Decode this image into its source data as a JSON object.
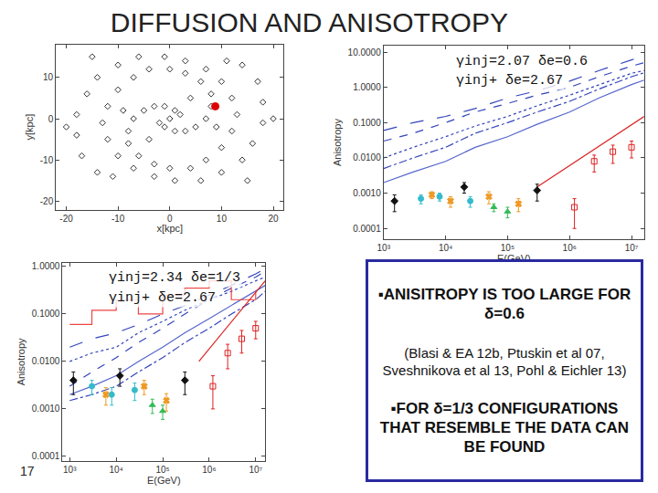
{
  "slide": {
    "title": "DIFFUSION AND ANISOTROPY",
    "page": "17",
    "box": {
      "points": [
        "▪ANISITROPY IS TOO LARGE FOR δ=0.6",
        "▪FOR δ=1/3 CONFIGURATIONS THAT RESEMBLE THE DATA CAN BE FOUND"
      ],
      "note": "(Blasi & EA 12b, Ptuskin et al 07, Sveshnikova et al 13, Pohl & Eichler 13)"
    }
  },
  "chart_data": [
    {
      "type": "scatter",
      "x_label": "x[kpc]",
      "y_label": "y[kpc]",
      "xlim": [
        -22,
        22
      ],
      "xticks": [
        -20,
        -10,
        0,
        10,
        20
      ],
      "ylim": [
        -22,
        18
      ],
      "yticks": [
        -20,
        -10,
        0,
        10
      ],
      "grid": false,
      "series": [
        {
          "type": "scatter",
          "marker": "diamond-open",
          "color": "#333333",
          "x": [
            1,
            -1,
            -3,
            -5,
            -7,
            -8,
            -8,
            -6,
            -3,
            0,
            4,
            7,
            10,
            12,
            13,
            12,
            10,
            7,
            3,
            -1,
            -6,
            -10,
            -14,
            -16,
            -18,
            -18,
            -17,
            -14,
            -1,
            1,
            3,
            5,
            7,
            8,
            8,
            6,
            3,
            0,
            -4,
            -7,
            -10,
            -12,
            -13,
            -12,
            -10,
            -7,
            -3,
            1,
            6,
            10,
            14,
            16,
            18,
            18,
            17,
            14,
            0,
            2,
            -2,
            4,
            -4,
            9,
            -9,
            15,
            -15,
            20,
            -20,
            11,
            -11
          ],
          "values": [
            2,
            3,
            3,
            2,
            0,
            -3,
            -6,
            -9,
            -11,
            -12,
            -12,
            -10,
            -7,
            -3,
            1,
            5,
            9,
            12,
            14,
            15,
            15,
            13,
            10,
            6,
            1,
            -4,
            -9,
            -13,
            -2,
            -3,
            -3,
            -2,
            0,
            3,
            6,
            9,
            11,
            12,
            12,
            10,
            7,
            3,
            -1,
            -5,
            -9,
            -12,
            -14,
            -15,
            -15,
            -13,
            -10,
            -6,
            -1,
            4,
            9,
            13,
            0,
            1,
            -1,
            5,
            -5,
            -2,
            2,
            -15,
            15,
            0,
            -2,
            14,
            -14
          ]
        },
        {
          "type": "scatter",
          "marker": "circle",
          "color": "#dd0000",
          "x": [
            8.8
          ],
          "values": [
            3
          ]
        }
      ]
    },
    {
      "type": "line",
      "log": true,
      "x_label": "E(GeV)",
      "y_label": "Anisotropy",
      "grid": false,
      "annotations": [
        "γinj=2.07 δe=0.6",
        "γinj+ δe=2.67"
      ],
      "xlim": [
        1000,
        16000000
      ],
      "xticks": [
        {
          "value": 1000,
          "label": "10³"
        },
        {
          "value": 10000,
          "label": "10⁴"
        },
        {
          "value": 100000,
          "label": "10⁵"
        },
        {
          "value": 1000000,
          "label": "10⁶"
        },
        {
          "value": 10000000,
          "label": "10⁷"
        }
      ],
      "ylim": [
        5e-05,
        15
      ],
      "yticks": [
        0.0001,
        {
          "value": 0.001,
          "label": "0.0010"
        },
        {
          "value": 0.01,
          "label": "0.0100"
        },
        {
          "value": 0.1,
          "label": "0.1000"
        },
        {
          "value": 1,
          "label": "1.0000"
        },
        {
          "value": 10,
          "label": "10.0000"
        }
      ],
      "series": [
        {
          "type": "line",
          "line_style": "dash",
          "color": "#3344bb",
          "x": [
            1000,
            3000,
            10000,
            30000,
            100000,
            300000,
            1000000,
            3000000,
            10000000,
            16000000
          ],
          "values": [
            0.03,
            0.05,
            0.1,
            0.2,
            0.35,
            0.6,
            1.0,
            2,
            4,
            5
          ]
        },
        {
          "type": "line",
          "line_style": "dot",
          "color": "#3344bb",
          "x": [
            1000,
            3000,
            10000,
            30000,
            100000,
            300000,
            1000000,
            3000000,
            10000000,
            16000000
          ],
          "values": [
            0.01,
            0.02,
            0.04,
            0.08,
            0.15,
            0.3,
            0.6,
            1.2,
            2.5,
            3
          ]
        },
        {
          "type": "line",
          "line_style": "dashdot",
          "color": "#3344bb",
          "x": [
            1000,
            3000,
            10000,
            30000,
            100000,
            300000,
            1000000,
            3000000,
            10000000,
            16000000
          ],
          "values": [
            0.005,
            0.01,
            0.02,
            0.05,
            0.1,
            0.2,
            0.4,
            0.9,
            2,
            2.6
          ]
        },
        {
          "type": "line",
          "line_style": "solid",
          "color": "#5566cc",
          "x": [
            1000,
            3000,
            10000,
            30000,
            100000,
            300000,
            1000000,
            3000000,
            10000000,
            16000000
          ],
          "values": [
            0.002,
            0.004,
            0.008,
            0.02,
            0.04,
            0.09,
            0.2,
            0.5,
            1.2,
            1.6
          ]
        },
        {
          "type": "line",
          "line_style": "longdash",
          "color": "#3344bb",
          "x": [
            1000,
            3000,
            10000,
            30000,
            100000,
            300000,
            1000000,
            3000000,
            10000000,
            16000000
          ],
          "values": [
            0.06,
            0.1,
            0.15,
            0.25,
            0.5,
            0.8,
            1.5,
            3,
            6,
            8
          ]
        },
        {
          "type": "line",
          "line_style": "solid",
          "color": "#dd2222",
          "x": [
            300000,
            16000000
          ],
          "values": [
            0.0015,
            0.15
          ]
        },
        {
          "type": "scatter",
          "marker": "circle",
          "color": "#33bbcc",
          "x": [
            4000,
            8000,
            25000
          ],
          "values": [
            0.0007,
            0.0008,
            0.0006
          ],
          "errors": [
            0.0002,
            0.0002,
            0.0002
          ]
        },
        {
          "type": "scatter",
          "marker": "x",
          "color": "#ee9922",
          "x": [
            6000,
            12000,
            50000,
            150000
          ],
          "values": [
            0.0009,
            0.0006,
            0.0008,
            0.0005
          ],
          "errors": [
            0.0002,
            0.0002,
            0.0003,
            0.0002
          ]
        },
        {
          "type": "scatter",
          "marker": "triangle-up",
          "color": "#33bb55",
          "x": [
            60000,
            100000
          ],
          "values": [
            0.0004,
            0.0003
          ],
          "errors": [
            0.0001,
            0.0001
          ]
        },
        {
          "type": "scatter",
          "marker": "diamond",
          "color": "#111111",
          "x": [
            1500,
            20000,
            300000
          ],
          "values": [
            0.0006,
            0.0015,
            0.0012
          ],
          "errors": [
            0.0003,
            0.0005,
            0.0006
          ]
        },
        {
          "type": "scatter",
          "marker": "square-open",
          "color": "#dd2222",
          "x": [
            1200000,
            2500000,
            5000000,
            10000000
          ],
          "values": [
            0.0004,
            0.008,
            0.015,
            0.02
          ],
          "errors": [
            0.0003,
            0.004,
            0.008,
            0.01
          ]
        }
      ]
    },
    {
      "type": "line",
      "log": true,
      "x_label": "E(GeV)",
      "y_label": "Anisotropy",
      "grid": false,
      "annotations": [
        "γinj=2.34 δe=1/3",
        "γinj+ δe=2.67"
      ],
      "xlim": [
        700,
        16000000
      ],
      "xticks": [
        {
          "value": 1000,
          "label": "10³"
        },
        {
          "value": 10000,
          "label": "10⁴"
        },
        {
          "value": 100000,
          "label": "10⁵"
        },
        {
          "value": 1000000,
          "label": "10⁶"
        },
        {
          "value": 10000000,
          "label": "10⁷"
        }
      ],
      "ylim": [
        8e-05,
        1.2
      ],
      "yticks": [
        0.0001,
        {
          "value": 0.001,
          "label": "0.0010"
        },
        {
          "value": 0.01,
          "label": "0.0100"
        },
        {
          "value": 0.1,
          "label": "0.1000"
        },
        {
          "value": 1,
          "label": "1.0000"
        }
      ],
      "series": [
        {
          "type": "line",
          "line_style": "dash",
          "color": "#3344bb",
          "x": [
            1000,
            3000,
            10000,
            30000,
            100000,
            300000,
            1000000,
            3000000,
            10000000,
            16000000
          ],
          "values": [
            0.003,
            0.006,
            0.012,
            0.025,
            0.05,
            0.1,
            0.2,
            0.35,
            0.6,
            0.8
          ]
        },
        {
          "type": "line",
          "line_style": "dot",
          "color": "#3344bb",
          "x": [
            1000,
            3000,
            10000,
            30000,
            100000,
            300000,
            1000000,
            3000000,
            10000000,
            16000000
          ],
          "values": [
            0.01,
            0.015,
            0.02,
            0.04,
            0.07,
            0.12,
            0.2,
            0.3,
            0.5,
            0.6
          ]
        },
        {
          "type": "line",
          "line_style": "solid",
          "color": "#5566cc",
          "x": [
            1000,
            3000,
            10000,
            30000,
            100000,
            300000,
            1000000,
            3000000,
            10000000,
            16000000
          ],
          "values": [
            0.002,
            0.003,
            0.005,
            0.01,
            0.02,
            0.04,
            0.08,
            0.15,
            0.3,
            0.4
          ]
        },
        {
          "type": "line",
          "line_style": "dashdot",
          "color": "#3344bb",
          "x": [
            1000,
            3000,
            10000,
            30000,
            100000,
            300000,
            1000000,
            3000000,
            10000000,
            16000000
          ],
          "values": [
            0.0015,
            0.002,
            0.003,
            0.006,
            0.012,
            0.025,
            0.05,
            0.1,
            0.2,
            0.3
          ]
        },
        {
          "type": "line",
          "line_style": "longdash",
          "color": "#3344bb",
          "x": [
            1000,
            3000,
            10000,
            30000,
            100000,
            300000,
            1000000,
            3000000,
            10000000,
            16000000
          ],
          "values": [
            0.02,
            0.03,
            0.04,
            0.06,
            0.1,
            0.15,
            0.25,
            0.4,
            0.7,
            0.9
          ]
        },
        {
          "type": "step",
          "line_style": "solid",
          "color": "#ee4444",
          "x": [
            1000,
            3000,
            10000,
            30000,
            100000,
            300000,
            1000000,
            3000000,
            10000000
          ],
          "values": [
            0.06,
            0.12,
            0.2,
            0.1,
            0.25,
            0.35,
            0.5,
            0.2,
            0.3
          ]
        },
        {
          "type": "line",
          "line_style": "solid",
          "color": "#dd2222",
          "x": [
            600000,
            16000000
          ],
          "values": [
            0.01,
            0.5
          ]
        },
        {
          "type": "scatter",
          "marker": "circle",
          "color": "#33bbcc",
          "x": [
            3000,
            8000,
            25000
          ],
          "values": [
            0.003,
            0.002,
            0.0025
          ],
          "errors": [
            0.001,
            0.0008,
            0.001
          ]
        },
        {
          "type": "scatter",
          "marker": "x",
          "color": "#ee9922",
          "x": [
            6000,
            40000,
            120000
          ],
          "values": [
            0.002,
            0.003,
            0.0015
          ],
          "errors": [
            0.0008,
            0.001,
            0.0006
          ]
        },
        {
          "type": "scatter",
          "marker": "triangle-up",
          "color": "#33bb55",
          "x": [
            60000,
            100000
          ],
          "values": [
            0.0012,
            0.0009
          ],
          "errors": [
            0.0004,
            0.0003
          ]
        },
        {
          "type": "scatter",
          "marker": "diamond",
          "color": "#111111",
          "x": [
            1200,
            12000,
            300000
          ],
          "values": [
            0.004,
            0.005,
            0.004
          ],
          "errors": [
            0.002,
            0.002,
            0.002
          ]
        },
        {
          "type": "scatter",
          "marker": "square-open",
          "color": "#dd2222",
          "x": [
            1200000,
            2500000,
            5000000,
            10000000
          ],
          "values": [
            0.003,
            0.015,
            0.03,
            0.05
          ],
          "errors": [
            0.002,
            0.008,
            0.015,
            0.02
          ]
        }
      ]
    }
  ]
}
